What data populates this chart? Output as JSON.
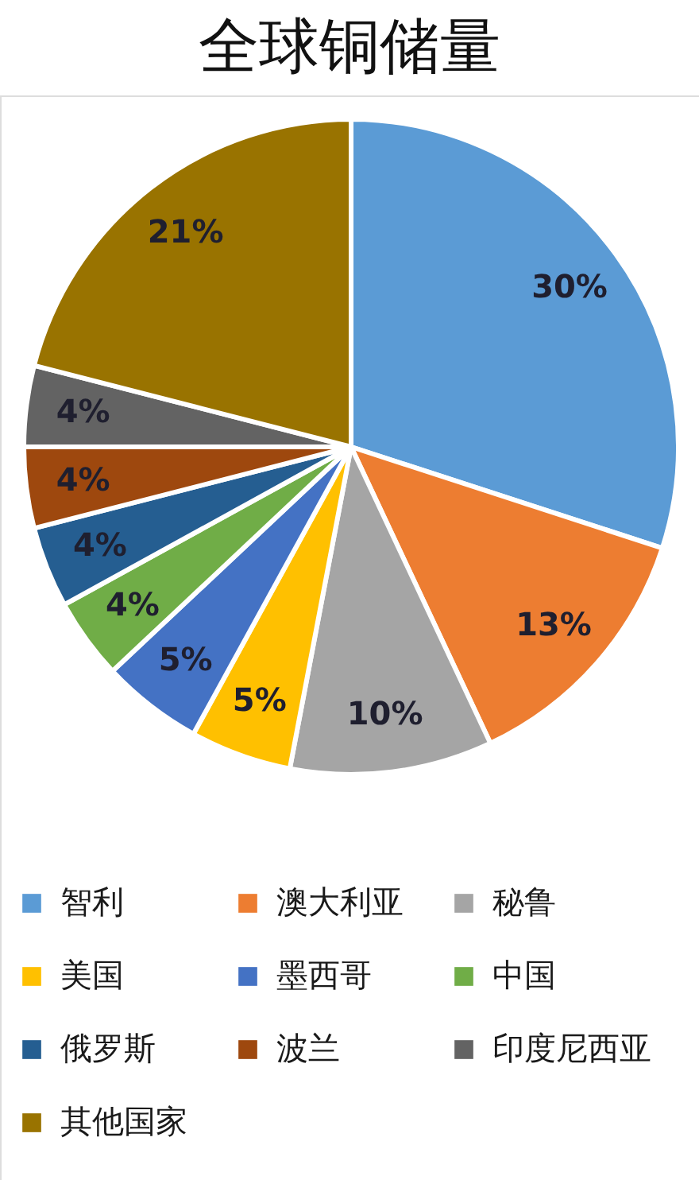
{
  "chart_data": {
    "type": "pie",
    "title": "全球铜储量",
    "categories": [
      "智利",
      "澳大利亚",
      "秘鲁",
      "美国",
      "墨西哥",
      "中国",
      "俄罗斯",
      "波兰",
      "印度尼西亚",
      "其他国家"
    ],
    "values": [
      30,
      13,
      10,
      5,
      5,
      4,
      4,
      4,
      4,
      21
    ],
    "colors": [
      "#5b9bd5",
      "#ed7d31",
      "#a5a5a5",
      "#ffc000",
      "#4472c4",
      "#70ad47",
      "#255e91",
      "#9e480e",
      "#636363",
      "#997300"
    ],
    "value_labels": [
      "30%",
      "13%",
      "10%",
      "5%",
      "5%",
      "4%",
      "4%",
      "4%",
      "4%",
      "21%"
    ],
    "legend": "bottom"
  }
}
